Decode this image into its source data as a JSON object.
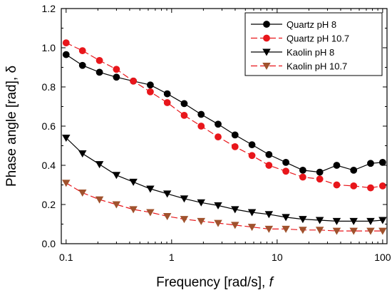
{
  "chart_data": {
    "type": "line",
    "xlabel": "Frequency [rad/s], ",
    "xlabel_italic": "f",
    "ylabel": "Phase angle [rad], δ",
    "x_scale": "log",
    "xlim": [
      0.09,
      110
    ],
    "ylim": [
      0.0,
      1.2
    ],
    "x_ticks": [
      0.1,
      1,
      10,
      100
    ],
    "x_tick_labels": [
      "0.1",
      "1",
      "10",
      "100"
    ],
    "y_ticks": [
      0.0,
      0.2,
      0.4,
      0.6,
      0.8,
      1.0,
      1.2
    ],
    "y_tick_labels": [
      "0.0",
      "0.2",
      "0.4",
      "0.6",
      "0.8",
      "1.0",
      "1.2"
    ],
    "grid": false,
    "legend_position": "top-right",
    "x": [
      0.1,
      0.1429,
      0.2071,
      0.2997,
      0.4338,
      0.628,
      0.909,
      1.316,
      1.905,
      2.757,
      3.99,
      5.776,
      8.36,
      12.1,
      17.52,
      25.35,
      36.7,
      53.12,
      76.89,
      100
    ],
    "series": [
      {
        "name": "Quartz pH 8",
        "marker": "circle",
        "color": "#000000",
        "line_style": "solid",
        "values": [
          0.965,
          0.91,
          0.875,
          0.85,
          0.83,
          0.81,
          0.765,
          0.715,
          0.66,
          0.61,
          0.555,
          0.505,
          0.455,
          0.415,
          0.375,
          0.365,
          0.4,
          0.375,
          0.41,
          0.415
        ]
      },
      {
        "name": "Quartz pH 10.7",
        "marker": "circle",
        "color": "#e8161b",
        "line_style": "dashed",
        "values": [
          1.025,
          0.985,
          0.935,
          0.89,
          0.83,
          0.775,
          0.72,
          0.655,
          0.6,
          0.545,
          0.495,
          0.45,
          0.4,
          0.37,
          0.34,
          0.33,
          0.3,
          0.295,
          0.285,
          0.295
        ]
      },
      {
        "name": "Kaolin pH 8",
        "marker": "triangle-down",
        "color": "#000000",
        "line_style": "solid",
        "values": [
          0.54,
          0.46,
          0.405,
          0.35,
          0.315,
          0.28,
          0.255,
          0.23,
          0.21,
          0.195,
          0.175,
          0.16,
          0.15,
          0.135,
          0.125,
          0.12,
          0.115,
          0.115,
          0.115,
          0.12
        ]
      },
      {
        "name": "Kaolin pH 10.7",
        "marker": "triangle-down",
        "color": "#a0522d",
        "line_color": "#e8161b",
        "line_style": "dashed",
        "values": [
          0.31,
          0.26,
          0.225,
          0.2,
          0.175,
          0.16,
          0.14,
          0.125,
          0.115,
          0.105,
          0.095,
          0.085,
          0.075,
          0.075,
          0.07,
          0.07,
          0.065,
          0.065,
          0.065,
          0.065
        ]
      }
    ]
  }
}
